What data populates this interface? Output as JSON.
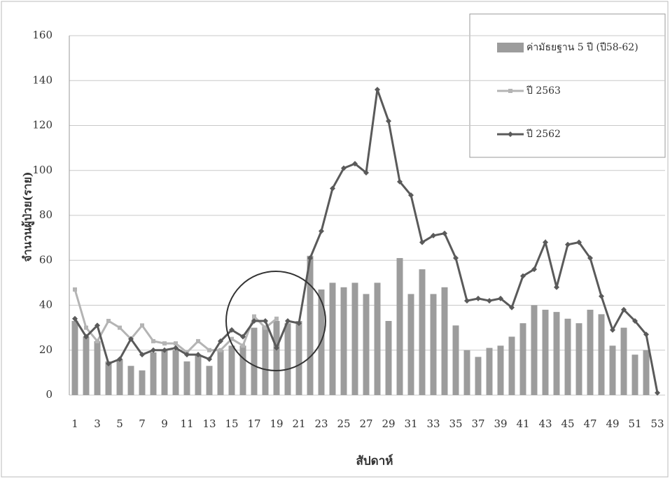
{
  "chart_data": {
    "type": "bar-line",
    "x_label": "สัปดาห์",
    "y_label": "จำนวนผู้ป่วย(ราย)",
    "categories": [
      "1",
      null,
      "3",
      null,
      "5",
      null,
      "7",
      null,
      "9",
      null,
      "11",
      null,
      "13",
      null,
      "15",
      null,
      "17",
      null,
      "19",
      null,
      "21",
      null,
      "23",
      null,
      "25",
      null,
      "27",
      null,
      "29",
      null,
      "31",
      null,
      "33",
      null,
      "35",
      null,
      "37",
      null,
      "39",
      null,
      "41",
      null,
      "43",
      null,
      "45",
      null,
      "47",
      null,
      "49",
      null,
      "51",
      null,
      "53"
    ],
    "series": [
      {
        "name": "ค่ามัธยฐาน 5 ปี (ปี58-62)",
        "kind": "bar",
        "color": "#9c9c9c",
        "values": [
          33,
          26,
          24,
          15,
          16,
          13,
          11,
          19,
          20,
          20,
          15,
          18,
          13,
          20,
          22,
          22,
          30,
          31,
          33,
          32,
          33,
          62,
          47,
          50,
          48,
          50,
          45,
          50,
          33,
          61,
          45,
          56,
          45,
          48,
          31,
          20,
          17,
          21,
          22,
          26,
          32,
          40,
          38,
          37,
          34,
          32,
          38,
          36,
          22,
          30,
          18,
          20,
          0
        ]
      },
      {
        "name": "ปี 2563",
        "kind": "line",
        "marker": "square",
        "color": "#b4b4b4",
        "values": [
          47,
          30,
          24,
          33,
          30,
          25,
          31,
          24,
          23,
          23,
          19,
          24,
          20,
          20,
          25,
          22,
          35,
          30,
          34,
          null,
          null,
          null,
          null,
          null,
          null,
          null,
          null,
          null,
          null,
          null,
          null,
          null,
          null,
          null,
          null,
          null,
          null,
          null,
          null,
          null,
          null,
          null,
          null,
          null,
          null,
          null,
          null,
          null,
          null,
          null,
          null,
          null,
          null
        ]
      },
      {
        "name": "ปี 2562",
        "kind": "line",
        "marker": "diamond",
        "color": "#5a5a5a",
        "values": [
          34,
          26,
          31,
          14,
          16,
          25,
          18,
          20,
          20,
          21,
          18,
          18,
          16,
          24,
          29,
          26,
          33,
          33,
          21,
          33,
          32,
          61,
          73,
          92,
          101,
          103,
          99,
          136,
          122,
          95,
          89,
          68,
          71,
          72,
          61,
          42,
          43,
          42,
          43,
          39,
          53,
          56,
          68,
          48,
          67,
          68,
          61,
          44,
          29,
          38,
          33,
          27,
          1
        ]
      }
    ],
    "ylim": [
      0,
      160
    ],
    "yticks": [
      0,
      20,
      40,
      60,
      80,
      100,
      120,
      140,
      160
    ],
    "grid": true
  }
}
